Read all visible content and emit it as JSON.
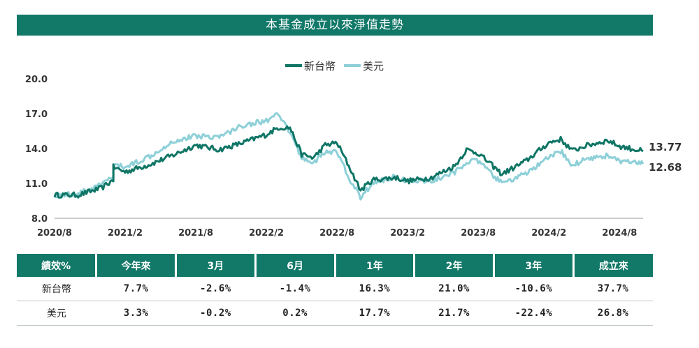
{
  "title": "本基金成立以來淨值走勢",
  "colors": {
    "twd": "#0f7565",
    "usd": "#8ed0d8",
    "header": "#127868"
  },
  "chart_data": {
    "type": "line",
    "legend_position": "top-center",
    "y_ticks": [
      "20.0",
      "17.0",
      "14.0",
      "11.0",
      "8.0"
    ],
    "ylim": [
      8,
      20
    ],
    "x_ticks": [
      "2020/8",
      "2021/2",
      "2021/8",
      "2022/2",
      "2022/8",
      "2023/2",
      "2023/8",
      "2024/2",
      "2024/8"
    ],
    "series": [
      {
        "name": "新台幣",
        "end_label": "13.77",
        "points": [
          [
            "2020/8",
            10.0
          ],
          [
            "2020/10",
            10.0
          ],
          [
            "2020/12",
            10.6
          ],
          [
            "2021/1",
            11.3
          ],
          [
            "2021/1",
            12.4
          ],
          [
            "2021/2",
            12.0
          ],
          [
            "2021/4",
            12.6
          ],
          [
            "2021/6",
            13.4
          ],
          [
            "2021/8",
            14.3
          ],
          [
            "2021/10",
            13.9
          ],
          [
            "2021/12",
            14.5
          ],
          [
            "2022/2",
            15.2
          ],
          [
            "2022/3",
            15.8
          ],
          [
            "2022/4",
            15.8
          ],
          [
            "2022/5",
            13.5
          ],
          [
            "2022/6",
            13.2
          ],
          [
            "2022/7",
            14.3
          ],
          [
            "2022/8",
            14.5
          ],
          [
            "2022/9",
            12.5
          ],
          [
            "2022/10",
            10.4
          ],
          [
            "2022/11",
            11.3
          ],
          [
            "2023/1",
            11.5
          ],
          [
            "2023/2",
            11.2
          ],
          [
            "2023/4",
            11.5
          ],
          [
            "2023/6",
            12.5
          ],
          [
            "2023/7",
            13.9
          ],
          [
            "2023/8",
            13.6
          ],
          [
            "2023/10",
            11.8
          ],
          [
            "2023/12",
            12.9
          ],
          [
            "2024/2",
            14.5
          ],
          [
            "2024/3",
            14.8
          ],
          [
            "2024/4",
            13.8
          ],
          [
            "2024/5",
            14.2
          ],
          [
            "2024/7",
            14.7
          ],
          [
            "2024/8",
            14.2
          ],
          [
            "2024/10",
            13.77
          ]
        ]
      },
      {
        "name": "美元",
        "end_label": "12.68",
        "points": [
          [
            "2020/8",
            10.0
          ],
          [
            "2020/10",
            10.1
          ],
          [
            "2020/12",
            10.9
          ],
          [
            "2021/1",
            11.6
          ],
          [
            "2021/1",
            12.6
          ],
          [
            "2021/2",
            12.4
          ],
          [
            "2021/4",
            13.3
          ],
          [
            "2021/6",
            14.6
          ],
          [
            "2021/8",
            15.1
          ],
          [
            "2021/10",
            15.0
          ],
          [
            "2021/12",
            16.0
          ],
          [
            "2022/2",
            16.4
          ],
          [
            "2022/3",
            16.9
          ],
          [
            "2022/4",
            15.4
          ],
          [
            "2022/5",
            13.2
          ],
          [
            "2022/6",
            12.8
          ],
          [
            "2022/7",
            13.7
          ],
          [
            "2022/8",
            13.7
          ],
          [
            "2022/9",
            11.5
          ],
          [
            "2022/10",
            9.8
          ],
          [
            "2022/11",
            11.0
          ],
          [
            "2023/1",
            11.6
          ],
          [
            "2023/2",
            11.2
          ],
          [
            "2023/4",
            11.2
          ],
          [
            "2023/6",
            11.9
          ],
          [
            "2023/7",
            12.9
          ],
          [
            "2023/8",
            12.9
          ],
          [
            "2023/10",
            11.0
          ],
          [
            "2023/12",
            11.8
          ],
          [
            "2024/2",
            13.2
          ],
          [
            "2024/3",
            13.8
          ],
          [
            "2024/4",
            12.5
          ],
          [
            "2024/5",
            13.1
          ],
          [
            "2024/7",
            13.4
          ],
          [
            "2024/8",
            12.9
          ],
          [
            "2024/10",
            12.68
          ]
        ]
      }
    ]
  },
  "table": {
    "headers": [
      "績效%",
      "今年來",
      "3月",
      "6月",
      "1年",
      "2年",
      "3年",
      "成立來"
    ],
    "rows": [
      {
        "label": "新台幣",
        "values": [
          "7.7%",
          "-2.6%",
          "-1.4%",
          "16.3%",
          "21.0%",
          "-10.6%",
          "37.7%"
        ]
      },
      {
        "label": "美元",
        "values": [
          "3.3%",
          "-0.2%",
          "0.2%",
          "17.7%",
          "21.7%",
          "-22.4%",
          "26.8%"
        ]
      }
    ]
  }
}
